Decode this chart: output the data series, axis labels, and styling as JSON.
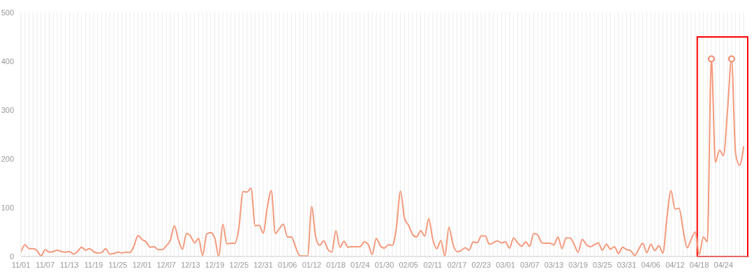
{
  "chart_data": {
    "type": "line",
    "categories": [
      "11/01",
      null,
      null,
      null,
      null,
      null,
      "11/07",
      null,
      null,
      null,
      null,
      null,
      "11/13",
      null,
      null,
      null,
      null,
      null,
      "11/19",
      null,
      null,
      null,
      null,
      null,
      "11/25",
      null,
      null,
      null,
      null,
      null,
      "12/01",
      null,
      null,
      null,
      null,
      null,
      "12/07",
      null,
      null,
      null,
      null,
      null,
      "12/13",
      null,
      null,
      null,
      null,
      null,
      "12/19",
      null,
      null,
      null,
      null,
      null,
      "12/25",
      null,
      null,
      null,
      null,
      null,
      "12/31",
      null,
      null,
      null,
      null,
      null,
      "01/06",
      null,
      null,
      null,
      null,
      null,
      "01/12",
      null,
      null,
      null,
      null,
      null,
      "01/18",
      null,
      null,
      null,
      null,
      null,
      "01/24",
      null,
      null,
      null,
      null,
      null,
      "01/30",
      null,
      null,
      null,
      null,
      null,
      "02/05",
      null,
      null,
      null,
      null,
      null,
      "02/11",
      null,
      null,
      null,
      null,
      null,
      "02/17",
      null,
      null,
      null,
      null,
      null,
      "02/23",
      null,
      null,
      null,
      null,
      null,
      "03/01",
      null,
      null,
      null,
      null,
      null,
      "03/07",
      null,
      null,
      null,
      null,
      null,
      "03/13",
      null,
      null,
      null,
      null,
      null,
      "03/19",
      null,
      null,
      null,
      null,
      null,
      "03/25",
      null,
      null,
      null,
      null,
      null,
      "03/31",
      null,
      null,
      null,
      null,
      null,
      "04/06",
      null,
      null,
      null,
      null,
      null,
      "04/12",
      null,
      null,
      null,
      null,
      null,
      "04/18",
      null,
      null,
      null,
      null,
      null,
      "04/24",
      null,
      null,
      null,
      null,
      null
    ],
    "series": [
      {
        "color": "#f4997b",
        "marker": "none",
        "values": [
          9,
          24,
          16,
          16,
          12,
          1,
          14,
          9,
          10,
          13,
          10,
          9,
          10,
          5,
          10,
          19,
          13,
          16,
          10,
          7,
          8,
          16,
          5,
          6,
          9,
          7,
          9,
          8,
          22,
          43,
          35,
          30,
          19,
          20,
          14,
          14,
          22,
          33,
          63,
          34,
          15,
          47,
          42,
          28,
          37,
          2,
          46,
          49,
          38,
          0,
          66,
          26,
          27,
          27,
          60,
          133,
          132,
          140,
          63,
          64,
          48,
          100,
          135,
          47,
          57,
          66,
          40,
          40,
          20,
          2,
          1,
          1,
          102,
          40,
          23,
          32,
          15,
          9,
          53,
          19,
          31,
          19,
          20,
          20,
          20,
          30,
          25,
          4,
          37,
          22,
          17,
          24,
          23,
          60,
          134,
          78,
          64,
          45,
          40,
          53,
          42,
          78,
          35,
          16,
          33,
          1,
          60,
          25,
          10,
          12,
          18,
          13,
          30,
          28,
          42,
          42,
          25,
          28,
          32,
          28,
          30,
          17,
          38,
          28,
          21,
          30,
          21,
          47,
          44,
          28,
          27,
          27,
          24,
          40,
          16,
          38,
          38,
          25,
          9,
          35,
          25,
          20,
          24,
          28,
          13,
          25,
          15,
          20,
          6,
          19,
          14,
          12,
          2,
          15,
          27,
          8,
          25,
          12,
          22,
          7,
          80,
          135,
          97,
          99,
          55,
          18,
          35,
          50,
          4,
          40,
          30,
          405,
          193,
          218,
          207,
          300,
          405,
          211,
          187,
          226
        ]
      },
      {
        "type": "scatter",
        "color": "#f08a6a",
        "marker": "circle",
        "values": [
          null,
          null,
          null,
          null,
          null,
          null,
          null,
          null,
          null,
          null,
          null,
          null,
          null,
          null,
          null,
          null,
          null,
          null,
          null,
          null,
          null,
          null,
          null,
          null,
          null,
          null,
          null,
          null,
          null,
          null,
          null,
          null,
          null,
          null,
          null,
          null,
          null,
          null,
          null,
          null,
          null,
          null,
          null,
          null,
          null,
          null,
          null,
          null,
          null,
          null,
          null,
          null,
          null,
          null,
          null,
          null,
          null,
          null,
          null,
          null,
          null,
          null,
          null,
          null,
          null,
          null,
          null,
          null,
          null,
          null,
          null,
          null,
          null,
          null,
          null,
          null,
          null,
          null,
          null,
          null,
          null,
          null,
          null,
          null,
          null,
          null,
          null,
          null,
          null,
          null,
          null,
          null,
          null,
          null,
          null,
          null,
          null,
          null,
          null,
          null,
          null,
          null,
          null,
          null,
          null,
          null,
          null,
          null,
          null,
          null,
          null,
          null,
          null,
          null,
          null,
          null,
          null,
          null,
          null,
          null,
          null,
          null,
          null,
          null,
          null,
          null,
          null,
          null,
          null,
          null,
          null,
          null,
          null,
          null,
          null,
          null,
          null,
          null,
          null,
          null,
          null,
          null,
          null,
          null,
          null,
          null,
          null,
          null,
          null,
          null,
          null,
          null,
          null,
          null,
          null,
          null,
          null,
          null,
          null,
          null,
          null,
          null,
          null,
          null,
          null,
          null,
          null,
          null,
          null,
          null,
          null,
          405,
          null,
          null,
          null,
          null,
          405,
          null,
          null,
          null
        ]
      }
    ],
    "ylim": [
      0,
      500
    ],
    "yticks": [
      0,
      100,
      200,
      300,
      400,
      500
    ],
    "grid": "x"
  }
}
